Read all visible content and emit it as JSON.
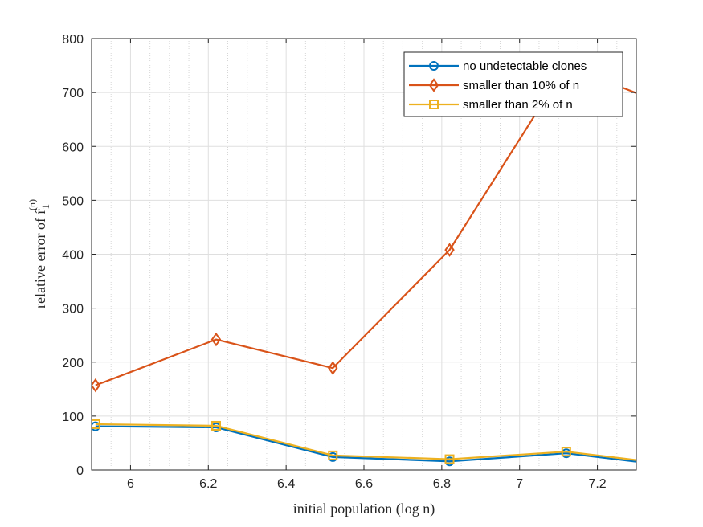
{
  "chart_data": {
    "type": "line",
    "title": "",
    "xlabel": "initial population (log n)",
    "ylabel": "relative error of r̂",
    "ylabel_subscript": "1",
    "ylabel_superscript": "(n)",
    "xlim": [
      5.9,
      7.3
    ],
    "ylim": [
      0,
      800
    ],
    "xticks": [
      "6",
      "6.2",
      "6.4",
      "6.6",
      "6.8",
      "7",
      "7.2"
    ],
    "yticks": [
      "0",
      "100",
      "200",
      "300",
      "400",
      "500",
      "600",
      "700",
      "800"
    ],
    "grid": true,
    "minor_grid_x": true,
    "legend_position": "top-right",
    "series": [
      {
        "name": "no undetectable clones",
        "color": "#0072BD",
        "marker": "circle",
        "x": [
          5.91,
          6.22,
          6.52,
          6.82,
          7.12,
          7.42
        ],
        "y": [
          81,
          79,
          24,
          16,
          31,
          5
        ]
      },
      {
        "name": "smaller than 10% of n",
        "color": "#D95319",
        "marker": "diamond",
        "x": [
          5.91,
          6.22,
          6.52,
          6.82,
          7.12,
          7.42
        ],
        "y": [
          157,
          242,
          189,
          408,
          750,
          665
        ]
      },
      {
        "name": "smaller than 2% of n",
        "color": "#EDB120",
        "marker": "square",
        "x": [
          5.91,
          6.22,
          6.52,
          6.82,
          7.12,
          7.42
        ],
        "y": [
          85,
          82,
          27,
          20,
          34,
          8
        ]
      }
    ]
  }
}
